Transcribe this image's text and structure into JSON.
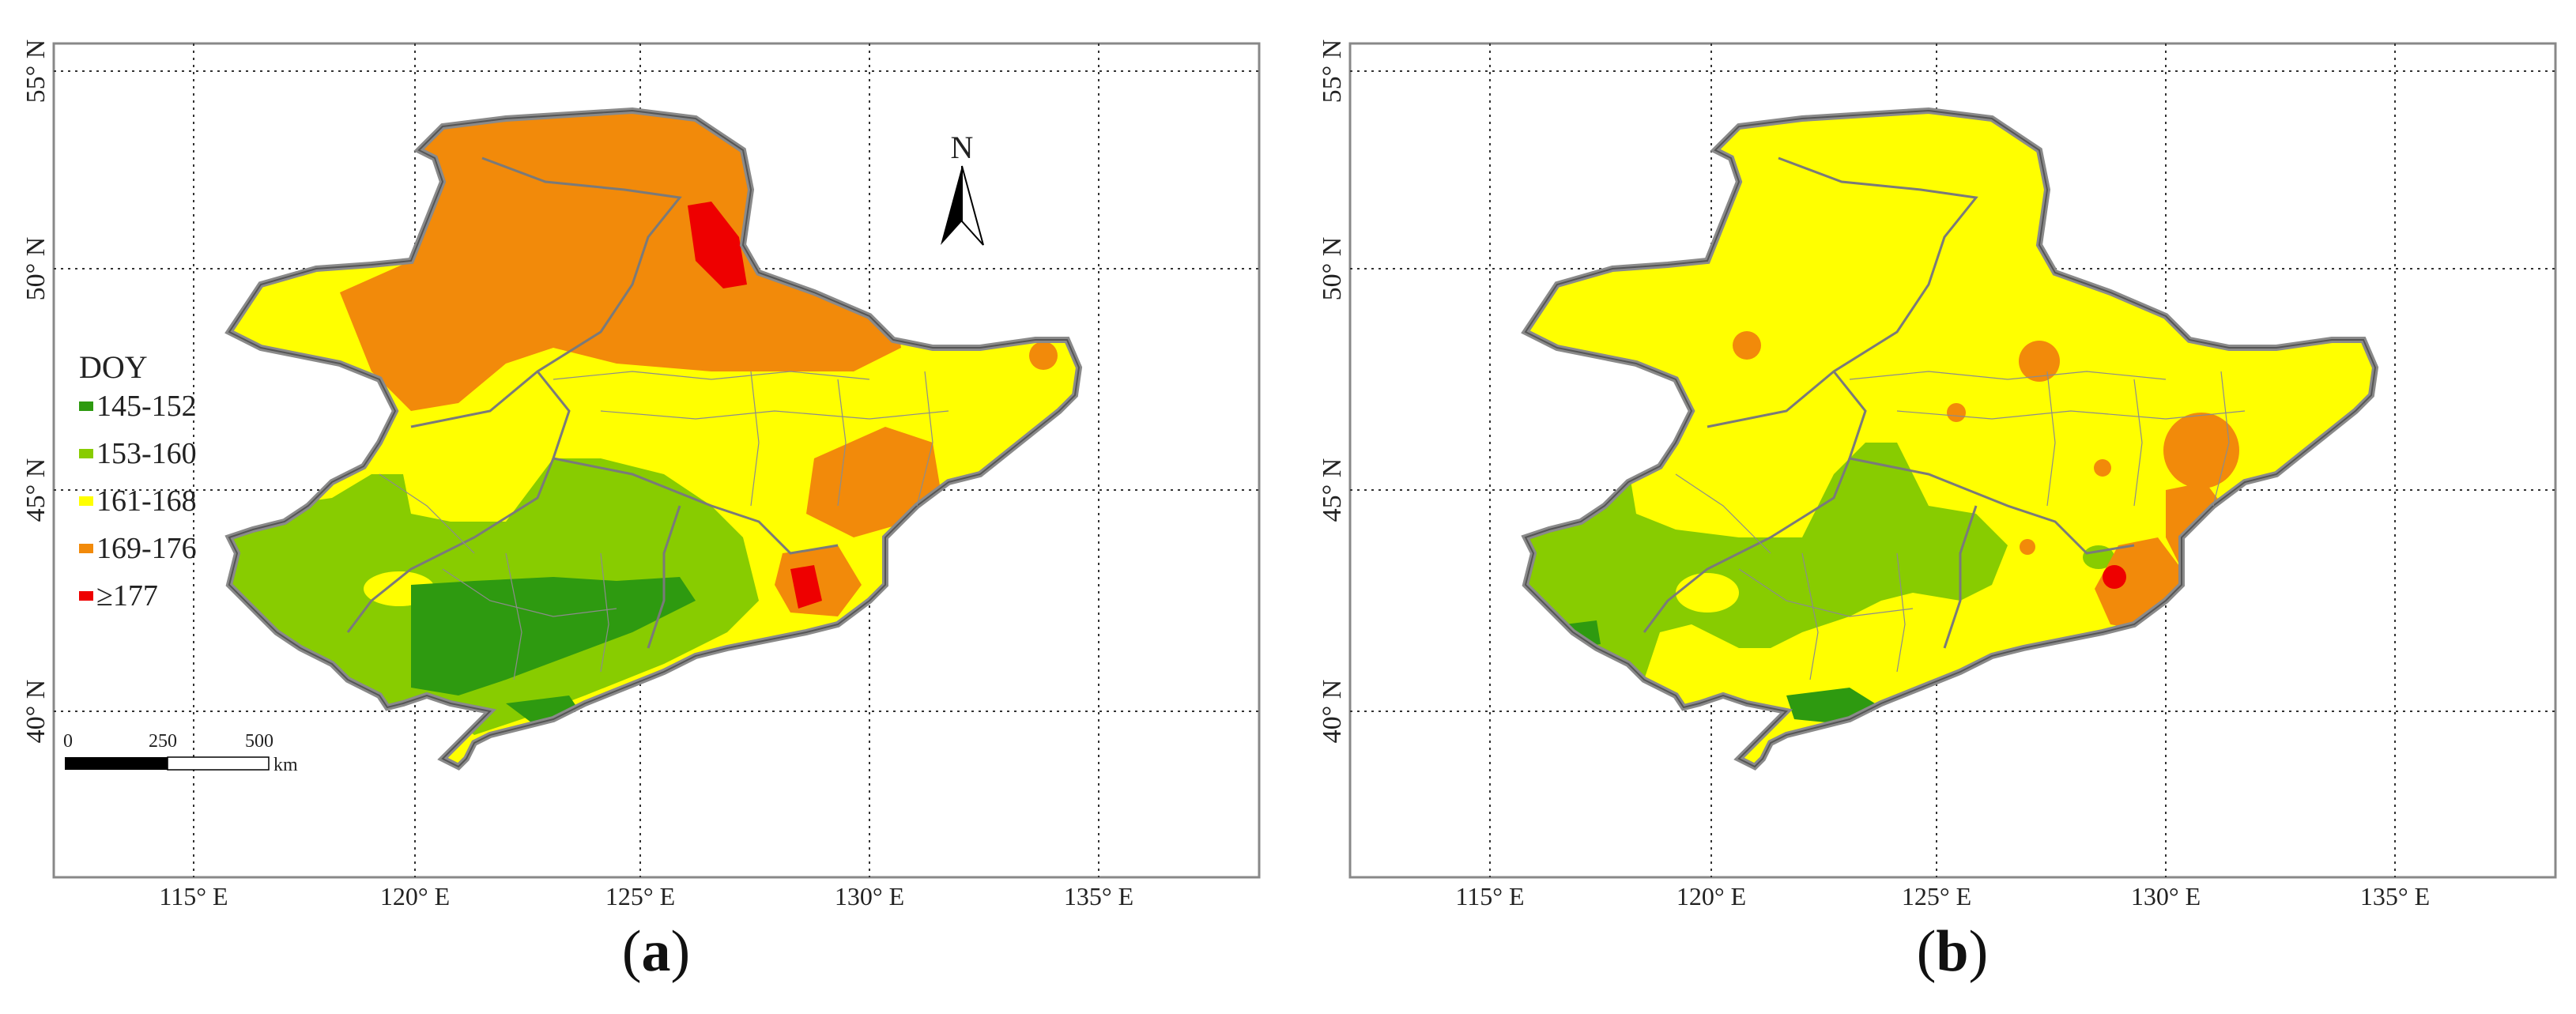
{
  "panels": [
    {
      "caption_letter": "a",
      "lat_labels": [
        "55° N",
        "50° N",
        "45° N",
        "40° N"
      ],
      "lon_labels": [
        "115° E",
        "120° E",
        "125° E",
        "130° E",
        "135° E"
      ],
      "north_label": "N",
      "legend": {
        "title": "DOY",
        "items": [
          {
            "label": "145-152",
            "color": "#2e9a10"
          },
          {
            "label": "153-160",
            "color": "#88cc00"
          },
          {
            "label": "161-168",
            "color": "#ffff00"
          },
          {
            "label": "169-176",
            "color": "#f28a0a"
          },
          {
            "label": "≥177",
            "color": "#ee0000"
          }
        ]
      },
      "scale_bar": {
        "ticks": [
          "0",
          "250",
          "500"
        ],
        "unit": "km"
      }
    },
    {
      "caption_letter": "b",
      "lat_labels": [
        "55° N",
        "50° N",
        "45° N",
        "40° N"
      ],
      "lon_labels": [
        "115° E",
        "120° E",
        "125° E",
        "130° E",
        "135° E"
      ]
    }
  ],
  "colors": {
    "dark_green": "#2e9a10",
    "light_green": "#88cc00",
    "yellow": "#ffff00",
    "orange": "#f28a0a",
    "red": "#ee0000",
    "border": "#8a8a8a"
  }
}
